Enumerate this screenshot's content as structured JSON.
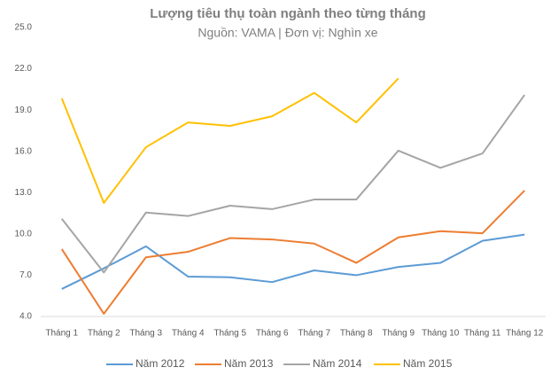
{
  "chart_data": {
    "type": "line",
    "title": "Lượng tiêu thụ toàn ngành theo từng tháng",
    "subtitle": "Nguồn: VAMA | Đơn vị: Nghìn xe",
    "categories": [
      "Tháng 1",
      "Tháng 2",
      "Tháng 3",
      "Tháng 4",
      "Tháng 5",
      "Tháng 6",
      "Tháng 7",
      "Tháng 8",
      "Tháng 9",
      "Tháng 10",
      "Tháng 11",
      "Tháng 12"
    ],
    "series": [
      {
        "name": "Năm 2012",
        "color": "#5b9bd5",
        "values": [
          6.0,
          7.5,
          9.1,
          6.9,
          6.85,
          6.5,
          7.35,
          7.0,
          7.6,
          7.9,
          9.5,
          9.95
        ]
      },
      {
        "name": "Năm 2013",
        "color": "#ed7d31",
        "values": [
          8.9,
          4.2,
          8.3,
          8.7,
          9.7,
          9.6,
          9.3,
          7.9,
          9.75,
          10.2,
          10.05,
          13.15
        ]
      },
      {
        "name": "Năm 2014",
        "color": "#a5a5a5",
        "values": [
          11.1,
          7.2,
          11.55,
          11.3,
          12.05,
          11.8,
          12.5,
          12.5,
          16.05,
          14.8,
          15.85,
          20.1
        ]
      },
      {
        "name": "Năm 2015",
        "color": "#ffc000",
        "values": [
          19.85,
          12.25,
          16.3,
          18.1,
          17.85,
          18.55,
          20.25,
          18.1,
          21.3,
          null,
          null,
          null
        ]
      }
    ],
    "ylim": [
      4,
      25
    ],
    "yticks": [
      {
        "value": 4,
        "label": "4.0"
      },
      {
        "value": 7,
        "label": "7.0"
      },
      {
        "value": 10,
        "label": "10.0"
      },
      {
        "value": 13,
        "label": "13.0"
      },
      {
        "value": 16,
        "label": "16.0"
      },
      {
        "value": 19,
        "label": "19.0"
      },
      {
        "value": 22,
        "label": "22.0"
      },
      {
        "value": 25,
        "label": "25.0"
      }
    ],
    "grid": false,
    "legend": "bottom"
  }
}
